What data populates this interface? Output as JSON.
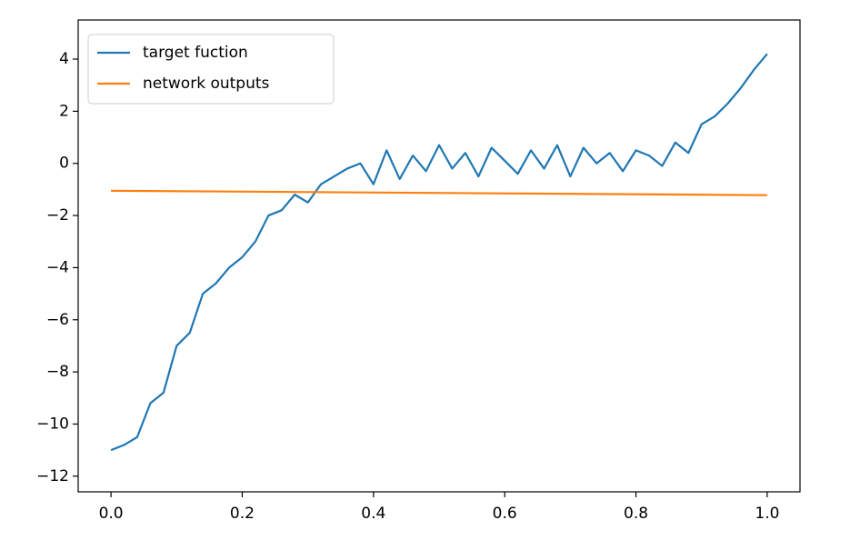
{
  "chart_data": {
    "type": "line",
    "xlim": [
      -0.05,
      1.05
    ],
    "ylim": [
      -12.6,
      5.5
    ],
    "xticks": [
      {
        "value": 0,
        "label": "0.0"
      },
      0.2,
      0.4,
      0.6,
      0.8,
      {
        "value": 1,
        "label": "1.0"
      }
    ],
    "yticks": [
      {
        "value": -12,
        "label": "−12"
      },
      {
        "value": -10,
        "label": "−10"
      },
      {
        "value": -8,
        "label": "−8"
      },
      {
        "value": -6,
        "label": "−6"
      },
      {
        "value": -4,
        "label": "−4"
      },
      {
        "value": -2,
        "label": "−2"
      },
      0,
      2,
      4
    ],
    "legend": "upper left",
    "series": [
      {
        "name": "target fuction",
        "color": "#1f77b4",
        "x": [
          0,
          0.02,
          0.04,
          0.06,
          0.08,
          0.1,
          0.12,
          0.14,
          0.16,
          0.18,
          0.2,
          0.22,
          0.24,
          0.26,
          0.28,
          0.3,
          0.32,
          0.34,
          0.36,
          0.38,
          0.4,
          0.42,
          0.44,
          0.46,
          0.48,
          0.5,
          0.52,
          0.54,
          0.56,
          0.58,
          0.6,
          0.62,
          0.64,
          0.66,
          0.68,
          0.7,
          0.72,
          0.74,
          0.76,
          0.78,
          0.8,
          0.82,
          0.84,
          0.86,
          0.88,
          0.9,
          0.92,
          0.94,
          0.96,
          0.98,
          1.0
        ],
        "values": [
          -11.0,
          -10.8,
          -10.5,
          -9.2,
          -8.8,
          -7.0,
          -6.5,
          -5.0,
          -4.6,
          -4.0,
          -3.6,
          -3.0,
          -2.0,
          -1.8,
          -1.2,
          -1.5,
          -0.8,
          -0.5,
          -0.2,
          0.0,
          -0.8,
          0.5,
          -0.6,
          0.3,
          -0.3,
          0.7,
          -0.2,
          0.4,
          -0.5,
          0.6,
          0.1,
          -0.4,
          0.5,
          -0.2,
          0.7,
          -0.5,
          0.6,
          0.0,
          0.4,
          -0.3,
          0.5,
          0.3,
          -0.1,
          0.8,
          0.4,
          1.5,
          1.8,
          2.3,
          2.9,
          3.6,
          4.2
        ]
      },
      {
        "name": "network outputs",
        "color": "#ff7f0e",
        "x": [
          0,
          1.0
        ],
        "values": [
          -1.05,
          -1.22
        ]
      }
    ]
  }
}
